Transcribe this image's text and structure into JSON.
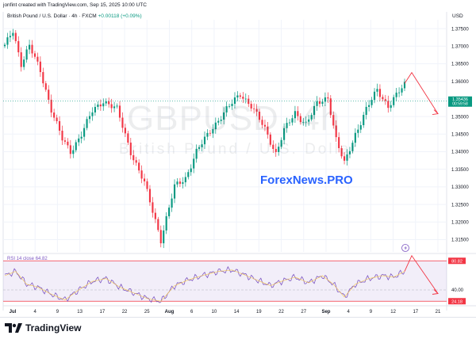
{
  "header": {
    "credit": "jonfint created with TradingView.com, Sep 15, 2025 10:00 UTC",
    "symbol_desc": "British Pound / U.S. Dollar · 4h · FXCM",
    "change": "+0.00118 (+0.09%)"
  },
  "watermark": {
    "symbol": "GBPUSD, 4h",
    "name": "British Pound / U.S. Dollar"
  },
  "overlay_text": "ForexNews.PRO",
  "footer": {
    "brand": "TradingView",
    "logo_icon": "tradingview-logo-icon"
  },
  "colors": {
    "up": "#089981",
    "down": "#f23645",
    "rsi": "#7e57c2",
    "arrow": "#f23645",
    "overlay": "#2962ff"
  },
  "chart_data": [
    {
      "type": "candlestick",
      "currency": "USD",
      "ylim": [
        1.3115,
        1.3775
      ],
      "y_ticks": [
        "1.37500",
        "1.37000",
        "1.36500",
        "1.36000",
        "1.35500",
        "1.35000",
        "1.34500",
        "1.34000",
        "1.33500",
        "1.33000",
        "1.32500",
        "1.32000",
        "1.31500"
      ],
      "x_ticks": [
        "Jul",
        "4",
        "9",
        "13",
        "17",
        "22",
        "25",
        "Aug",
        "6",
        "10",
        "14",
        "19",
        "22",
        "27",
        "Sep",
        "4",
        "9",
        "12",
        "17",
        "21"
      ],
      "last_price": "1.35436",
      "countdown": "00:59:58",
      "path": [
        [
          0,
          1.37
        ],
        [
          3,
          1.3745
        ],
        [
          6,
          1.365
        ],
        [
          9,
          1.37
        ],
        [
          13,
          1.363
        ],
        [
          17,
          1.352
        ],
        [
          21,
          1.3435
        ],
        [
          24,
          1.34
        ],
        [
          28,
          1.345
        ],
        [
          32,
          1.3515
        ],
        [
          36,
          1.3545
        ],
        [
          41,
          1.352
        ],
        [
          46,
          1.34
        ],
        [
          51,
          1.331
        ],
        [
          55,
          1.3205
        ],
        [
          57,
          1.315
        ],
        [
          62,
          1.33
        ],
        [
          66,
          1.3325
        ],
        [
          70,
          1.34
        ],
        [
          76,
          1.347
        ],
        [
          81,
          1.352
        ],
        [
          86,
          1.3565
        ],
        [
          90,
          1.353
        ],
        [
          95,
          1.3465
        ],
        [
          99,
          1.3395
        ],
        [
          102,
          1.346
        ],
        [
          106,
          1.351
        ],
        [
          110,
          1.348
        ],
        [
          114,
          1.3535
        ],
        [
          118,
          1.3555
        ],
        [
          121,
          1.3435
        ],
        [
          124,
          1.3365
        ],
        [
          128,
          1.345
        ],
        [
          132,
          1.352
        ],
        [
          136,
          1.3575
        ],
        [
          140,
          1.353
        ],
        [
          143,
          1.356
        ],
        [
          146,
          1.359
        ]
      ],
      "projection": {
        "start": 1.3594,
        "peak": 1.3625,
        "end": 1.3508
      }
    },
    {
      "type": "line",
      "name": "RSI",
      "label": "RSI 14 close",
      "value": "64.82",
      "levels": [
        "80.82",
        "40.00",
        "24.18"
      ],
      "ylim": [
        20,
        90
      ],
      "path": [
        [
          0,
          60
        ],
        [
          4,
          66
        ],
        [
          8,
          48
        ],
        [
          12,
          44
        ],
        [
          17,
          34
        ],
        [
          22,
          26
        ],
        [
          27,
          40
        ],
        [
          32,
          52
        ],
        [
          37,
          56
        ],
        [
          42,
          44
        ],
        [
          47,
          36
        ],
        [
          52,
          28
        ],
        [
          57,
          24
        ],
        [
          62,
          46
        ],
        [
          67,
          54
        ],
        [
          72,
          60
        ],
        [
          78,
          66
        ],
        [
          83,
          68
        ],
        [
          87,
          62
        ],
        [
          92,
          54
        ],
        [
          97,
          46
        ],
        [
          101,
          52
        ],
        [
          106,
          58
        ],
        [
          111,
          50
        ],
        [
          116,
          60
        ],
        [
          120,
          48
        ],
        [
          124,
          30
        ],
        [
          128,
          48
        ],
        [
          133,
          56
        ],
        [
          138,
          60
        ],
        [
          142,
          58
        ],
        [
          146,
          66
        ]
      ]
    }
  ]
}
